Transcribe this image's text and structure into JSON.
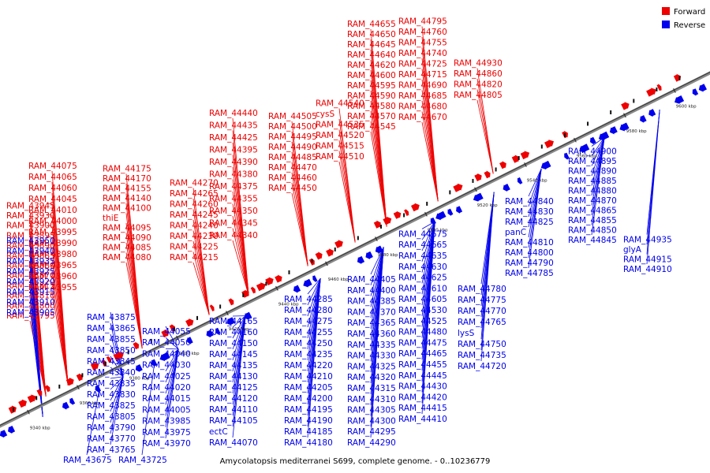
{
  "caption": "Amycolatopsis mediterranei S699, complete genome. - 0..10236779",
  "legend": {
    "forward_label": "Forward",
    "reverse_label": "Reverse",
    "forward_color": "#ee0000",
    "reverse_color": "#0000ee"
  },
  "axis_ticks": [
    "9340 kbp",
    "9360 kbp",
    "9380 kbp",
    "9400 kbp",
    "9420 kbp",
    "9440 kbp",
    "9460 kbp",
    "9480 kbp",
    "9500 kbp",
    "9520 kbp",
    "9540 kbp",
    "9560 kbp",
    "9580 kbp",
    "9600 kbp"
  ],
  "forward_genes": [
    "RAM_43795",
    "RAM_43800",
    "RAM_43810",
    "RAM_43815",
    "RAM_43870",
    "RAM_43880",
    "RAM_43885",
    "RAM_43890",
    "RAM_43895",
    "RAM_43900",
    "RAM_43930",
    "RAM_43945",
    "RAM_43955",
    "RAM_43960",
    "RAM_43965",
    "RAM_43980",
    "RAM_43990",
    "RAM_43995",
    "RAM_44000",
    "RAM_44010",
    "RAM_44045",
    "RAM_44060",
    "RAM_44065",
    "RAM_44075",
    "RAM_44080",
    "RAM_44085",
    "RAM_44090",
    "RAM_44095",
    "thiE",
    "RAM_44100",
    "RAM_44140",
    "RAM_44155",
    "RAM_44170",
    "RAM_44175",
    "RAM_44215",
    "RAM_44225",
    "RAM_44230",
    "RAM_44240",
    "RAM_44245",
    "RAM_44260",
    "RAM_44265",
    "RAM_44270",
    "RAM_44340",
    "RAM_44345",
    "RAM_44350",
    "RAM_44355",
    "RAM_44375",
    "RAM_44380",
    "RAM_44390",
    "RAM_44395",
    "RAM_44425",
    "RAM_44435",
    "RAM_44440",
    "RAM_44450",
    "RAM_44460",
    "RAM_44470",
    "RAM_44485",
    "RAM_44490",
    "RAM_44495",
    "RAM_44500",
    "RAM_44505",
    "RAM_44510",
    "RAM_44515",
    "RAM_44520",
    "RAM_44535",
    "cysS",
    "RAM_44540",
    "RAM_44545",
    "RAM_44570",
    "RAM_44580",
    "RAM_44590",
    "RAM_44595",
    "RAM_44600",
    "RAM_44620",
    "RAM_44640",
    "RAM_44645",
    "RAM_44650",
    "RAM_44655",
    "RAM_44670",
    "RAM_44680",
    "RAM_44685",
    "RAM_44690",
    "RAM_44715",
    "RAM_44725",
    "RAM_44740",
    "RAM_44755",
    "RAM_44760",
    "RAM_44795",
    "RAM_44805",
    "RAM_44820",
    "RAM_44860",
    "RAM_44930"
  ],
  "reverse_genes": [
    "RAM_43675",
    "RAM_43725",
    "RAM_43765",
    "RAM_43770",
    "RAM_43790",
    "RAM_43805",
    "RAM_43825",
    "RAM_43830",
    "RAM_43835",
    "RAM_43840",
    "RAM_43845",
    "RAM_43850",
    "RAM_43855",
    "RAM_43865",
    "RAM_43875",
    "RAM_43905",
    "RAM_43910",
    "RAM_43915",
    "RAM_43920",
    "RAM_43925",
    "RAM_43935",
    "RAM_43940",
    "RAM_43950",
    "RAM_43970",
    "RAM_43975",
    "RAM_43985",
    "RAM_44005",
    "RAM_44015",
    "RAM_44020",
    "RAM_44025",
    "RAM_44030",
    "RAM_44040",
    "RAM_44050",
    "RAM_44055",
    "RAM_44070",
    "ectC",
    "RAM_44105",
    "RAM_44110",
    "RAM_44120",
    "RAM_44125",
    "RAM_44130",
    "RAM_44135",
    "RAM_44145",
    "RAM_44150",
    "RAM_44160",
    "RAM_44165",
    "RAM_44180",
    "RAM_44185",
    "RAM_44190",
    "RAM_44195",
    "RAM_44200",
    "RAM_44205",
    "RAM_44210",
    "RAM_44220",
    "RAM_44235",
    "RAM_44250",
    "RAM_44255",
    "RAM_44275",
    "RAM_44280",
    "RAM_44285",
    "RAM_44290",
    "RAM_44295",
    "RAM_44300",
    "RAM_44305",
    "RAM_44310",
    "RAM_44315",
    "RAM_44320",
    "RAM_44325",
    "RAM_44330",
    "RAM_44335",
    "RAM_44360",
    "RAM_44365",
    "RAM_44370",
    "RAM_44385",
    "RAM_44400",
    "RAM_44405",
    "RAM_44410",
    "RAM_44415",
    "RAM_44420",
    "RAM_44430",
    "RAM_44445",
    "RAM_44455",
    "RAM_44465",
    "RAM_44475",
    "RAM_44480",
    "RAM_44525",
    "RAM_44530",
    "RAM_44605",
    "RAM_44610",
    "RAM_44625",
    "RAM_44630",
    "RAM_44635",
    "RAM_44665",
    "RAM_44675",
    "RAM_44720",
    "RAM_44735",
    "RAM_44750",
    "lysS",
    "RAM_44765",
    "RAM_44770",
    "RAM_44775",
    "RAM_44780",
    "RAM_44785",
    "RAM_44790",
    "RAM_44800",
    "RAM_44810",
    "panC",
    "RAM_44825",
    "RAM_44830",
    "RAM_44840",
    "RAM_44845",
    "RAM_44850",
    "RAM_44855",
    "RAM_44865",
    "RAM_44870",
    "RAM_44880",
    "RAM_44885",
    "RAM_44890",
    "RAM_44895",
    "RAM_44900",
    "RAM_44910",
    "RAM_44915",
    "glyA",
    "RAM_44935"
  ]
}
